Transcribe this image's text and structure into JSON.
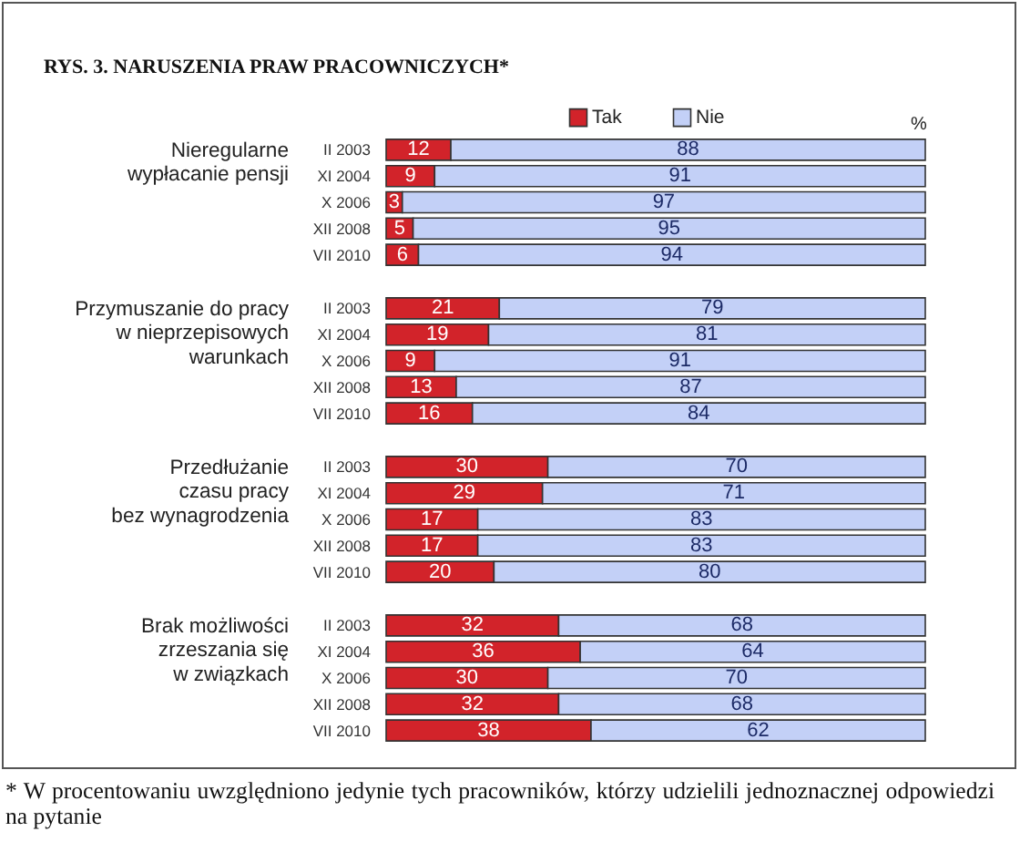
{
  "chart_data": [
    {
      "type": "bar",
      "orientation": "horizontal",
      "stacked": true,
      "title": "RYS. 3. NARUSZENIA PRAW PRACOWNICZYCH*",
      "ylabel": "Nieregularne\nwypłacanie pensji",
      "categories": [
        "II 2003",
        "XI 2004",
        "X 2006",
        "XII 2008",
        "VII 2010"
      ],
      "series": [
        {
          "name": "Tak",
          "color": "#d2232a",
          "values": [
            12,
            9,
            3,
            5,
            6
          ]
        },
        {
          "name": "Nie",
          "color": "#c3d0f7",
          "values": [
            88,
            91,
            97,
            95,
            94
          ]
        }
      ],
      "data_labels": true,
      "tick_labels": "y",
      "legend": "top",
      "annotations": [
        "%"
      ]
    },
    {
      "type": "bar",
      "orientation": "horizontal",
      "stacked": true,
      "ylabel": "Przymuszanie do pracy\nw nieprzepisowych\nwarunkach",
      "categories": [
        "II 2003",
        "XI 2004",
        "X 2006",
        "XII 2008",
        "VII 2010"
      ],
      "series": [
        {
          "color": "#d2232a",
          "values": [
            21,
            19,
            9,
            13,
            16
          ]
        },
        {
          "color": "#c3d0f7",
          "values": [
            79,
            81,
            91,
            87,
            84
          ]
        }
      ],
      "data_labels": true,
      "tick_labels": "y"
    },
    {
      "type": "bar",
      "orientation": "horizontal",
      "stacked": true,
      "ylabel": "Przedłużanie\nczasu pracy\nbez wynagrodzenia",
      "categories": [
        "II 2003",
        "XI 2004",
        "X 2006",
        "XII 2008",
        "VII 2010"
      ],
      "series": [
        {
          "color": "#d2232a",
          "values": [
            30,
            29,
            17,
            17,
            20
          ]
        },
        {
          "color": "#c3d0f7",
          "values": [
            70,
            71,
            83,
            83,
            80
          ]
        }
      ],
      "data_labels": true,
      "tick_labels": "y"
    },
    {
      "type": "bar",
      "orientation": "horizontal",
      "stacked": true,
      "ylabel": "Brak możliwości\nzrzeszania się\nw związkach",
      "categories": [
        "II 2003",
        "XI 2004",
        "X 2006",
        "XII 2008",
        "VII 2010"
      ],
      "series": [
        {
          "color": "#d2232a",
          "values": [
            32,
            36,
            30,
            32,
            38
          ]
        },
        {
          "color": "#c3d0f7",
          "values": [
            68,
            64,
            70,
            68,
            62
          ]
        }
      ],
      "data_labels": true,
      "tick_labels": "y",
      "annotations": [
        "* W procentowaniu uwzględniono jedynie tych pracowników, którzy udzielili jednoznacznej odpowiedzi na pytanie"
      ]
    }
  ]
}
